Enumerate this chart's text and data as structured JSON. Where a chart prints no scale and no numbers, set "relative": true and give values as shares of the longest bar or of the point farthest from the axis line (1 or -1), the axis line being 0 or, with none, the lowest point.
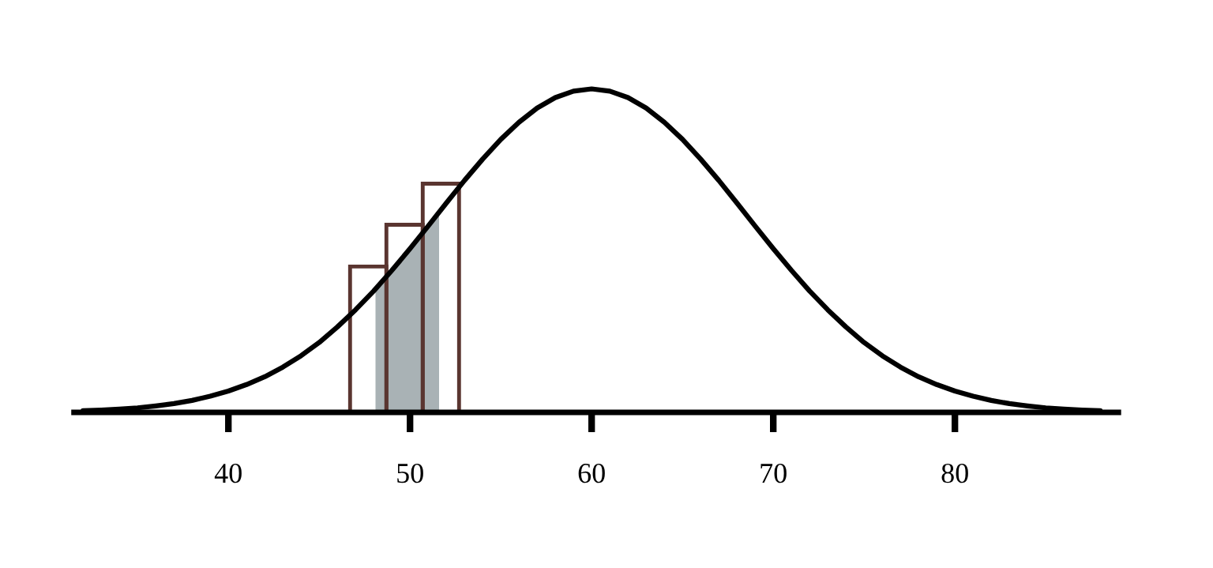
{
  "chart_data": {
    "type": "line",
    "relative": true,
    "xlim": [
      31.5,
      89
    ],
    "xticks": [
      40,
      50,
      60,
      70,
      80
    ],
    "tick_labels": "x",
    "grid": false,
    "legend": false,
    "marker": "none",
    "line_style": "solid",
    "series": [
      {
        "type": "area",
        "color": "#a9b2b5",
        "x": [
          48.1,
          48.5,
          49,
          49.5,
          50,
          50.5,
          51,
          51.6
        ],
        "values": [
          0.382,
          0.411,
          0.439,
          0.472,
          0.506,
          0.541,
          0.576,
          0.619
        ]
      },
      {
        "type": "histogram",
        "color": "#5a3530",
        "bins": [
          46.7,
          48.7,
          50.7,
          52.7
        ],
        "values": [
          0.451,
          0.58,
          0.707
        ]
      },
      {
        "color": "#000000",
        "x": [
          32,
          33,
          34,
          35,
          36,
          37,
          38,
          39,
          40,
          41,
          42,
          43,
          44,
          45,
          46,
          47,
          48,
          49,
          50,
          51,
          52,
          53,
          54,
          55,
          56,
          57,
          58,
          59,
          60,
          61,
          62,
          63,
          64,
          65,
          66,
          67,
          68,
          69,
          70,
          71,
          72,
          73,
          74,
          75,
          76,
          77,
          78,
          79,
          80,
          81,
          82,
          83,
          84,
          85,
          86,
          87,
          88
        ],
        "values": [
          0.005,
          0.007,
          0.01,
          0.014,
          0.02,
          0.027,
          0.037,
          0.05,
          0.066,
          0.086,
          0.11,
          0.14,
          0.175,
          0.216,
          0.264,
          0.317,
          0.375,
          0.439,
          0.506,
          0.576,
          0.647,
          0.717,
          0.783,
          0.844,
          0.897,
          0.941,
          0.973,
          0.993,
          1,
          0.993,
          0.973,
          0.941,
          0.897,
          0.844,
          0.783,
          0.717,
          0.647,
          0.576,
          0.506,
          0.439,
          0.375,
          0.317,
          0.264,
          0.216,
          0.175,
          0.14,
          0.11,
          0.086,
          0.066,
          0.05,
          0.037,
          0.027,
          0.02,
          0.014,
          0.01,
          0.007,
          0.005
        ]
      }
    ]
  }
}
